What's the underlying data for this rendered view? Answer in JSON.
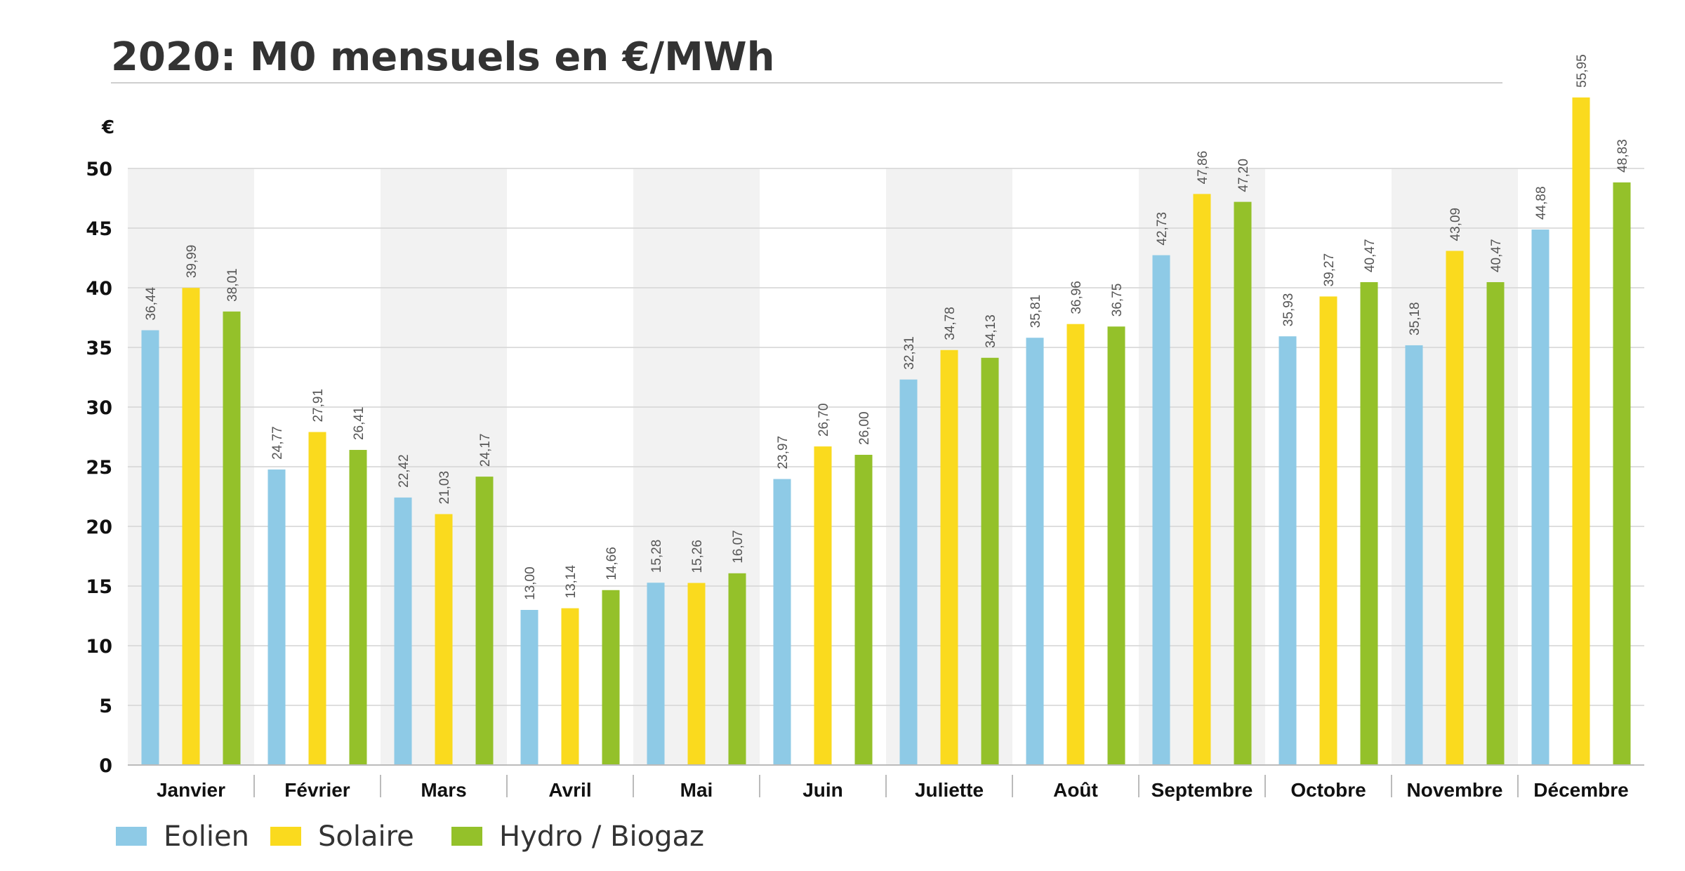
{
  "chart_data": {
    "type": "bar",
    "title": "2020: M0 mensuels en €/MWh",
    "y_unit": "€",
    "ylim": [
      0,
      55
    ],
    "y_ticks": [
      0,
      5,
      10,
      15,
      20,
      25,
      30,
      35,
      40,
      45,
      50
    ],
    "grid": true,
    "legend_position": "bottom-left",
    "categories": [
      "Janvier",
      "Février",
      "Mars",
      "Avril",
      "Mai",
      "Juin",
      "Juliette",
      "Août",
      "Septembre",
      "Octobre",
      "Novembre",
      "Décembre"
    ],
    "series": [
      {
        "name": "Eolien",
        "color": "#8ecae6",
        "values": [
          36.44,
          24.77,
          22.42,
          13.0,
          15.28,
          23.97,
          32.31,
          35.81,
          42.73,
          35.93,
          35.18,
          44.88
        ],
        "labels": [
          "36,44",
          "24,77",
          "22,42",
          "13,00",
          "15,28",
          "23,97",
          "32,31",
          "35,81",
          "42,73",
          "35,93",
          "35,18",
          "44,88"
        ]
      },
      {
        "name": "Solaire",
        "color": "#fada1e",
        "values": [
          39.99,
          27.91,
          21.03,
          13.14,
          15.26,
          26.7,
          34.78,
          36.96,
          47.86,
          39.27,
          43.09,
          55.95
        ],
        "labels": [
          "39,99",
          "27,91",
          "21,03",
          "13,14",
          "15,26",
          "26,70",
          "34,78",
          "36,96",
          "47,86",
          "39,27",
          "43,09",
          "55,95"
        ]
      },
      {
        "name": "Hydro / Biogaz",
        "color": "#94c12a",
        "values": [
          38.01,
          26.41,
          24.17,
          14.66,
          16.07,
          26.0,
          34.13,
          36.75,
          47.2,
          40.47,
          40.47,
          48.83
        ],
        "labels": [
          "38,01",
          "26,41",
          "24,17",
          "14,66",
          "16,07",
          "26,00",
          "34,13",
          "36,75",
          "47,20",
          "40,47",
          "40,47",
          "48,83"
        ]
      }
    ],
    "band_color": "#f2f2f2",
    "grid_color": "#d4d4d4"
  }
}
